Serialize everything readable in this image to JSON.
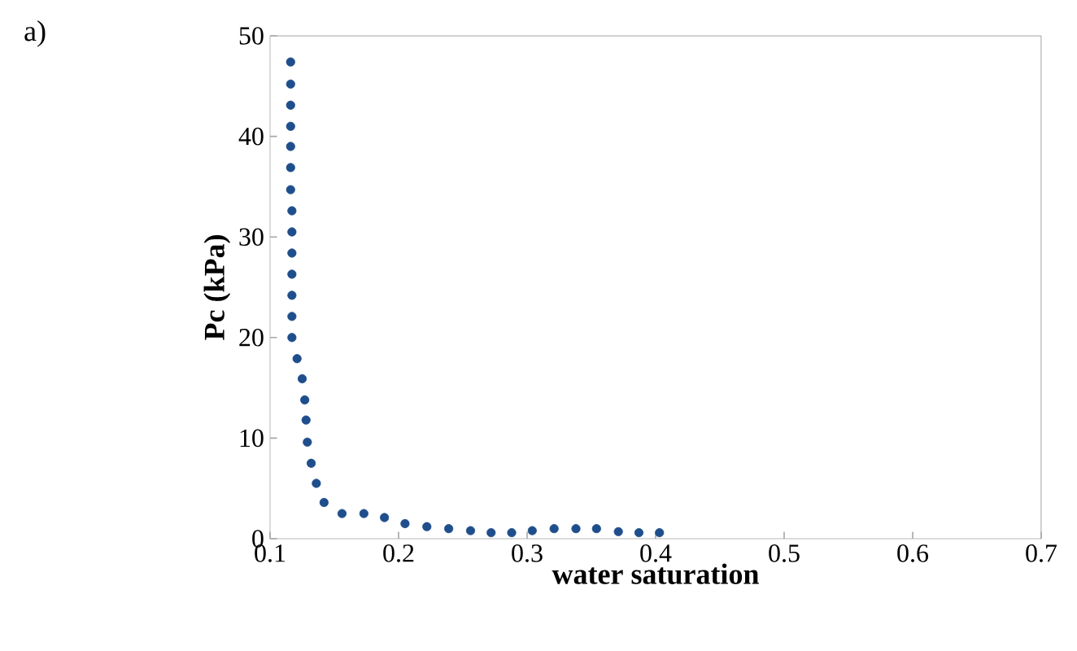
{
  "chart_data": {
    "type": "scatter",
    "xlabel": "water saturation",
    "ylabel": "Pc (kPa)",
    "annotations": [
      "a)"
    ],
    "marker": "circle",
    "grid": false,
    "xlim": [
      0.1,
      0.7
    ],
    "xticks": [
      0.1,
      0.2,
      0.3,
      0.4,
      0.5,
      0.6,
      0.7
    ],
    "ylim": [
      0,
      50
    ],
    "yticks": [
      0,
      10,
      20,
      30,
      40,
      50
    ],
    "series": [
      {
        "color": "#1f4e8c",
        "x": [
          0.116,
          0.116,
          0.116,
          0.116,
          0.116,
          0.116,
          0.116,
          0.117,
          0.117,
          0.117,
          0.117,
          0.117,
          0.117,
          0.117,
          0.121,
          0.125,
          0.127,
          0.128,
          0.129,
          0.132,
          0.136,
          0.142,
          0.156,
          0.173,
          0.189,
          0.205,
          0.222,
          0.239,
          0.256,
          0.272,
          0.288,
          0.304,
          0.321,
          0.338,
          0.354,
          0.371,
          0.387,
          0.403
        ],
        "values": [
          47.4,
          45.2,
          43.1,
          41.0,
          39.0,
          36.9,
          34.7,
          32.6,
          30.5,
          28.4,
          26.3,
          24.2,
          22.1,
          20.0,
          17.9,
          15.9,
          13.8,
          11.8,
          9.6,
          7.5,
          5.5,
          3.6,
          2.5,
          2.5,
          2.1,
          1.5,
          1.2,
          1.0,
          0.8,
          0.6,
          0.6,
          0.8,
          1.0,
          1.0,
          1.0,
          0.7,
          0.6,
          0.6
        ]
      }
    ]
  }
}
